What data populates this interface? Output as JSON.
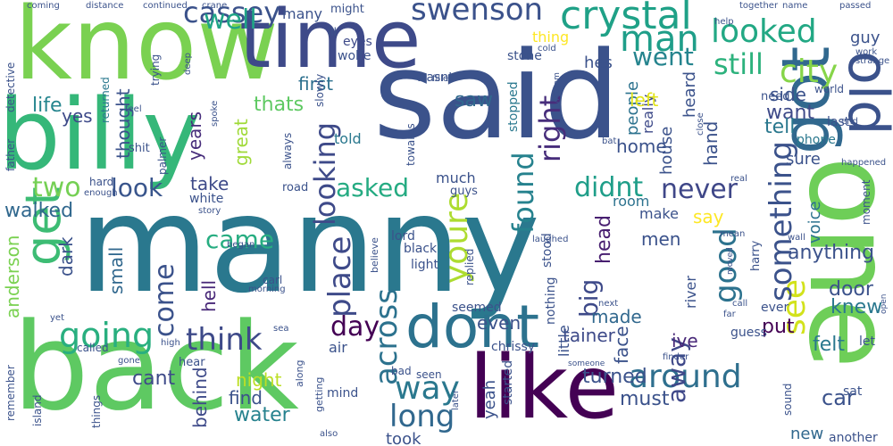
{
  "words": [
    {
      "text": "manny",
      "color": "#2a788e"
    },
    {
      "text": "said",
      "color": "#3b528b"
    },
    {
      "text": "back",
      "color": "#5ec962"
    },
    {
      "text": "know",
      "color": "#7ad151"
    },
    {
      "text": "billy",
      "color": "#35b779"
    },
    {
      "text": "one",
      "color": "#6ece58"
    },
    {
      "text": "time",
      "color": "#3e4a89"
    },
    {
      "text": "like",
      "color": "#440154"
    },
    {
      "text": "dont",
      "color": "#2c728e"
    },
    {
      "text": "got",
      "color": "#31688e"
    },
    {
      "text": "old",
      "color": "#3b528b"
    },
    {
      "text": "get",
      "color": "#3dbc74"
    },
    {
      "text": "crystal",
      "color": "#1fa187"
    },
    {
      "text": "looked",
      "color": "#22a884"
    },
    {
      "text": "cassey",
      "color": "#3b528b"
    },
    {
      "text": "swenson",
      "color": "#3b528b"
    },
    {
      "text": "well",
      "color": "#20a486"
    },
    {
      "text": "man",
      "color": "#1f9e89"
    },
    {
      "text": "still",
      "color": "#2db27d"
    },
    {
      "text": "went",
      "color": "#25848e"
    },
    {
      "text": "city",
      "color": "#86d549"
    },
    {
      "text": "around",
      "color": "#2e6f8e"
    },
    {
      "text": "going",
      "color": "#29af7f"
    },
    {
      "text": "think",
      "color": "#3e4a89"
    },
    {
      "text": "way",
      "color": "#2a788e"
    },
    {
      "text": "long",
      "color": "#31688e"
    },
    {
      "text": "see",
      "color": "#d2e21b"
    },
    {
      "text": "something",
      "color": "#3b528b"
    },
    {
      "text": "good",
      "color": "#2c728e"
    },
    {
      "text": "youre",
      "color": "#addc30"
    },
    {
      "text": "place",
      "color": "#3e4a89"
    },
    {
      "text": "looking",
      "color": "#3e4a89"
    },
    {
      "text": "found",
      "color": "#26828e"
    },
    {
      "text": "right",
      "color": "#472d7b"
    },
    {
      "text": "never",
      "color": "#3f4788"
    },
    {
      "text": "didnt",
      "color": "#1f9e89"
    },
    {
      "text": "asked",
      "color": "#25ab82"
    },
    {
      "text": "look",
      "color": "#39558c"
    },
    {
      "text": "two",
      "color": "#75d054"
    },
    {
      "text": "come",
      "color": "#3b528b"
    },
    {
      "text": "came",
      "color": "#27ad81"
    },
    {
      "text": "across",
      "color": "#2c728e"
    },
    {
      "text": "day",
      "color": "#440154"
    },
    {
      "text": "big",
      "color": "#3e4a89"
    },
    {
      "text": "head",
      "color": "#481f70"
    },
    {
      "text": "away",
      "color": "#3f4889"
    },
    {
      "text": "first",
      "color": "#2d708e"
    },
    {
      "text": "saw",
      "color": "#31688e"
    },
    {
      "text": "life",
      "color": "#25858e"
    },
    {
      "text": "thats",
      "color": "#5ec962"
    },
    {
      "text": "yes",
      "color": "#3e4a89"
    },
    {
      "text": "thought",
      "color": "#3b528b"
    },
    {
      "text": "years",
      "color": "#472d7b"
    },
    {
      "text": "great",
      "color": "#a0da39"
    },
    {
      "text": "want",
      "color": "#3e4a89"
    },
    {
      "text": "tell",
      "color": "#2a788e"
    },
    {
      "text": "home",
      "color": "#3b528b"
    },
    {
      "text": "take",
      "color": "#3e4a89"
    },
    {
      "text": "walked",
      "color": "#31688e"
    },
    {
      "text": "anderson",
      "color": "#7ad151"
    },
    {
      "text": "dark",
      "color": "#3b528b"
    },
    {
      "text": "small",
      "color": "#31688e"
    },
    {
      "text": "hell",
      "color": "#482878"
    },
    {
      "text": "made",
      "color": "#31688e"
    },
    {
      "text": "even",
      "color": "#3b528b"
    },
    {
      "text": "tainer",
      "color": "#3e4a89"
    },
    {
      "text": "ive",
      "color": "#482878"
    },
    {
      "text": "knew",
      "color": "#2a788e"
    },
    {
      "text": "door",
      "color": "#3b528b"
    },
    {
      "text": "anything",
      "color": "#3b528b"
    },
    {
      "text": "felt",
      "color": "#2a788e"
    },
    {
      "text": "put",
      "color": "#440154"
    },
    {
      "text": "night",
      "color": "#bddf26"
    },
    {
      "text": "find",
      "color": "#3b528b"
    },
    {
      "text": "water",
      "color": "#26828e"
    },
    {
      "text": "cant",
      "color": "#3e4a89"
    },
    {
      "text": "behind",
      "color": "#3e4a89"
    },
    {
      "text": "face",
      "color": "#3b528b"
    },
    {
      "text": "turned",
      "color": "#3b528b"
    },
    {
      "text": "must",
      "color": "#3b528b"
    },
    {
      "text": "car",
      "color": "#3b528b"
    },
    {
      "text": "new",
      "color": "#31688e"
    },
    {
      "text": "took",
      "color": "#3b528b"
    },
    {
      "text": "hand",
      "color": "#3b528b"
    },
    {
      "text": "voice",
      "color": "#2c728e"
    },
    {
      "text": "say",
      "color": "#fde725"
    },
    {
      "text": "men",
      "color": "#3b528b"
    },
    {
      "text": "make",
      "color": "#3b528b"
    },
    {
      "text": "room",
      "color": "#2c728e"
    },
    {
      "text": "people",
      "color": "#2c728e"
    },
    {
      "text": "really",
      "color": "#3e4a89"
    },
    {
      "text": "house",
      "color": "#3b528b"
    },
    {
      "text": "heard",
      "color": "#3b528b"
    },
    {
      "text": "left",
      "color": "#e2e418"
    },
    {
      "text": "hes",
      "color": "#3b528b"
    },
    {
      "text": "thing",
      "color": "#fde725"
    },
    {
      "text": "guy",
      "color": "#3b528b"
    },
    {
      "text": "side",
      "color": "#3b528b"
    },
    {
      "text": "sure",
      "color": "#3b528b"
    },
    {
      "text": "phone",
      "color": "#2a788e"
    },
    {
      "text": "need",
      "color": "#3b528b"
    },
    {
      "text": "told",
      "color": "#2a788e"
    },
    {
      "text": "much",
      "color": "#3b528b"
    },
    {
      "text": "guys",
      "color": "#3b528b"
    },
    {
      "text": "stone",
      "color": "#3b528b"
    },
    {
      "text": "stopped",
      "color": "#2a788e"
    },
    {
      "text": "wasnt",
      "color": "#3b528b"
    },
    {
      "text": "many",
      "color": "#3b528b"
    },
    {
      "text": "might",
      "color": "#3b528b"
    },
    {
      "text": "eyes",
      "color": "#3e4a89"
    },
    {
      "text": "wolfe",
      "color": "#3b528b"
    },
    {
      "text": "trying",
      "color": "#3b528b"
    },
    {
      "text": "returned",
      "color": "#2a788e"
    },
    {
      "text": "detective",
      "color": "#3b528b"
    },
    {
      "text": "father",
      "color": "#3b528b"
    },
    {
      "text": "palmer",
      "color": "#3b528b"
    },
    {
      "text": "shit",
      "color": "#3b528b"
    },
    {
      "text": "hard",
      "color": "#3b528b"
    },
    {
      "text": "white",
      "color": "#3b528b"
    },
    {
      "text": "road",
      "color": "#3b528b"
    },
    {
      "text": "lord",
      "color": "#3b528b"
    },
    {
      "text": "black",
      "color": "#3b528b"
    },
    {
      "text": "light",
      "color": "#3b528b"
    },
    {
      "text": "stood",
      "color": "#3b528b"
    },
    {
      "text": "nothing",
      "color": "#3b528b"
    },
    {
      "text": "little",
      "color": "#3b528b"
    },
    {
      "text": "river",
      "color": "#3b528b"
    },
    {
      "text": "seemed",
      "color": "#3b528b"
    },
    {
      "text": "chrissy",
      "color": "#3b528b"
    },
    {
      "text": "called",
      "color": "#3b528b"
    },
    {
      "text": "air",
      "color": "#3b528b"
    },
    {
      "text": "hear",
      "color": "#3b528b"
    },
    {
      "text": "mind",
      "color": "#3b528b"
    },
    {
      "text": "yeah",
      "color": "#3b528b"
    },
    {
      "text": "started",
      "color": "#3b528b"
    },
    {
      "text": "seen",
      "color": "#3b528b"
    },
    {
      "text": "bad",
      "color": "#3b528b"
    },
    {
      "text": "sat",
      "color": "#3b528b"
    },
    {
      "text": "sound",
      "color": "#3b528b"
    },
    {
      "text": "another",
      "color": "#3b528b"
    },
    {
      "text": "let",
      "color": "#3b528b"
    },
    {
      "text": "guess",
      "color": "#3b528b"
    },
    {
      "text": "ever",
      "color": "#3b528b"
    },
    {
      "text": "moment",
      "color": "#3b528b"
    },
    {
      "text": "harry",
      "color": "#3b528b"
    },
    {
      "text": "world",
      "color": "#3b528b"
    },
    {
      "text": "last",
      "color": "#3b528b"
    },
    {
      "text": "remember",
      "color": "#3b528b"
    },
    {
      "text": "island",
      "color": "#3b528b"
    },
    {
      "text": "things",
      "color": "#3b528b"
    },
    {
      "text": "carl",
      "color": "#3b528b"
    },
    {
      "text": "always",
      "color": "#3b528b"
    },
    {
      "text": "slowly",
      "color": "#3b528b"
    },
    {
      "text": "towards",
      "color": "#3b528b"
    },
    {
      "text": "replied",
      "color": "#3b528b"
    },
    {
      "text": "believe",
      "color": "#3b528b"
    },
    {
      "text": "getting",
      "color": "#3b528b"
    },
    {
      "text": "along",
      "color": "#3b528b"
    },
    {
      "text": "laughed",
      "color": "#3b528b"
    },
    {
      "text": "coming",
      "color": "#3b528b"
    },
    {
      "text": "distance",
      "color": "#3b528b"
    },
    {
      "text": "continued",
      "color": "#3b528b"
    },
    {
      "text": "crane",
      "color": "#3b528b"
    },
    {
      "text": "help",
      "color": "#3b528b"
    },
    {
      "text": "name",
      "color": "#3b528b"
    },
    {
      "text": "together",
      "color": "#3b528b"
    },
    {
      "text": "passed",
      "color": "#3b528b"
    },
    {
      "text": "work",
      "color": "#3b528b"
    },
    {
      "text": "strange",
      "color": "#3b528b"
    },
    {
      "text": "cold",
      "color": "#3b528b"
    },
    {
      "text": "ill",
      "color": "#3b528b"
    },
    {
      "text": "filled",
      "color": "#3b528b"
    },
    {
      "text": "deep",
      "color": "#3b528b"
    },
    {
      "text": "feel",
      "color": "#3b528b"
    },
    {
      "text": "spoke",
      "color": "#3b528b"
    },
    {
      "text": "vietnam",
      "color": "#3b528b"
    },
    {
      "text": "close",
      "color": "#3b528b"
    },
    {
      "text": "end",
      "color": "#3b528b"
    },
    {
      "text": "bat",
      "color": "#3b528b"
    },
    {
      "text": "happened",
      "color": "#3b528b"
    },
    {
      "text": "enough",
      "color": "#3b528b"
    },
    {
      "text": "story",
      "color": "#3b528b"
    },
    {
      "text": "real",
      "color": "#3b528b"
    },
    {
      "text": "mean",
      "color": "#3b528b"
    },
    {
      "text": "began",
      "color": "#3b528b"
    },
    {
      "text": "wall",
      "color": "#3b528b"
    },
    {
      "text": "moved",
      "color": "#3b528b"
    },
    {
      "text": "morning",
      "color": "#3b528b"
    },
    {
      "text": "next",
      "color": "#3b528b"
    },
    {
      "text": "call",
      "color": "#3b528b"
    },
    {
      "text": "far",
      "color": "#3b528b"
    },
    {
      "text": "open",
      "color": "#3b528b"
    },
    {
      "text": "yet",
      "color": "#3b528b"
    },
    {
      "text": "sea",
      "color": "#3b528b"
    },
    {
      "text": "high",
      "color": "#3b528b"
    },
    {
      "text": "gone",
      "color": "#3b528b"
    },
    {
      "text": "someone",
      "color": "#3b528b"
    },
    {
      "text": "finder",
      "color": "#3b528b"
    },
    {
      "text": "later",
      "color": "#3b528b"
    },
    {
      "text": "also",
      "color": "#3b528b"
    }
  ]
}
